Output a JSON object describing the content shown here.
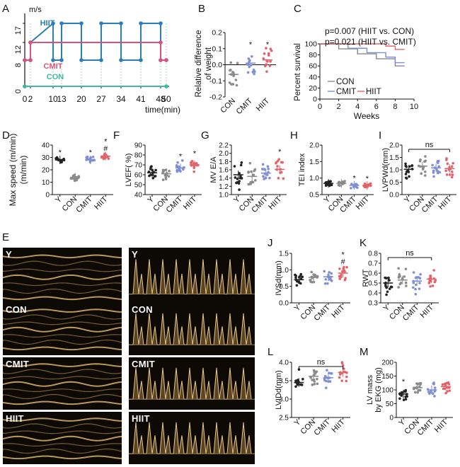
{
  "panels": {
    "A": {
      "letter": "A"
    },
    "B": {
      "letter": "B"
    },
    "C": {
      "letter": "C"
    },
    "D": {
      "letter": "D"
    },
    "F": {
      "letter": "F"
    },
    "G": {
      "letter": "G"
    },
    "H": {
      "letter": "H"
    },
    "I": {
      "letter": "I"
    },
    "E": {
      "letter": "E"
    },
    "J": {
      "letter": "J"
    },
    "K": {
      "letter": "K"
    },
    "L": {
      "letter": "L"
    },
    "M": {
      "letter": "M"
    }
  },
  "colors": {
    "Y": "#222222",
    "CON": "#8a8a8a",
    "CMIT": "#7f8fd3",
    "HIIT": "#e0646a",
    "hiit_line": "#2b7fb8",
    "cmit_line": "#d4547a",
    "con_line": "#3fb8a8"
  },
  "chart_data": [
    {
      "panel": "A",
      "type": "line",
      "ylabel": "m/s",
      "xlabel": "time(min)",
      "xticks": [
        "0",
        "2",
        "10",
        "13",
        "20",
        "27",
        "34",
        "41",
        "48",
        "50"
      ],
      "yticks": [
        "0",
        "8",
        "12",
        "17"
      ],
      "series": [
        {
          "name": "HIIT",
          "x": [
            0,
            2,
            2,
            10,
            10,
            13,
            13,
            20,
            20,
            27,
            27,
            34,
            34,
            41,
            41,
            48,
            48,
            50
          ],
          "y": [
            8,
            8,
            12,
            17,
            8,
            8,
            17,
            17,
            8,
            8,
            17,
            17,
            8,
            8,
            17,
            17,
            8,
            8
          ]
        },
        {
          "name": "CMIT",
          "x": [
            0,
            2,
            2,
            48,
            48,
            50
          ],
          "y": [
            8,
            8,
            12,
            12,
            8,
            8
          ]
        },
        {
          "name": "CON",
          "x": [
            0,
            50
          ],
          "y": [
            0,
            0
          ]
        }
      ]
    },
    {
      "panel": "B",
      "type": "scatter",
      "ylabel": "Relative difference of weight",
      "categories": [
        "CON",
        "CMIT",
        "HIIT"
      ],
      "yticks": [
        "-0.2",
        "-0.1",
        "0.0",
        "0.1",
        "0.2"
      ],
      "ylim": [
        -0.2,
        0.2
      ],
      "means": [
        -0.06,
        0.01,
        0.03
      ],
      "sig": [
        "",
        "*",
        "*"
      ]
    },
    {
      "panel": "C",
      "type": "line",
      "ylabel": "Percent survival",
      "xlabel": "Weeks",
      "xticks": [
        "0",
        "2",
        "4",
        "6",
        "8",
        "10"
      ],
      "yticks": [
        "0",
        "20",
        "40",
        "60",
        "80",
        "100"
      ],
      "annotations": [
        "p=0.007 (HIIT vs. CON)",
        "p=0.021 (HIIT vs. CMIT)"
      ],
      "series": [
        {
          "name": "CON",
          "x": [
            0,
            2,
            2,
            4,
            4,
            6,
            6,
            8,
            8,
            9
          ],
          "y": [
            100,
            100,
            91,
            91,
            82,
            82,
            73,
            73,
            60,
            60
          ]
        },
        {
          "name": "CMIT",
          "x": [
            0,
            3,
            3,
            5,
            5,
            7,
            7,
            8,
            8,
            9
          ],
          "y": [
            100,
            100,
            92,
            92,
            84,
            84,
            76,
            76,
            66,
            66
          ]
        },
        {
          "name": "HIIT",
          "x": [
            0,
            7,
            7,
            8,
            8,
            9
          ],
          "y": [
            100,
            100,
            96,
            96,
            90,
            90
          ]
        }
      ]
    },
    {
      "panel": "D",
      "type": "scatter",
      "ylabel": "Max speed (m/min)",
      "categories": [
        "Y",
        "CON",
        "CMIT",
        "HIIT"
      ],
      "yticks": [
        "0",
        "10",
        "20",
        "30",
        "40"
      ],
      "ylim": [
        0,
        40
      ],
      "means": [
        28,
        14,
        28,
        31
      ],
      "sig": [
        "*",
        "",
        "*",
        "*\n#"
      ]
    },
    {
      "panel": "F",
      "type": "scatter",
      "ylabel": "LVEF( %)",
      "categories": [
        "Y",
        "CON",
        "CMIT",
        "HIIT"
      ],
      "yticks": [
        "40",
        "50",
        "60",
        "70",
        "80",
        "90"
      ],
      "ylim": [
        40,
        90
      ],
      "means": [
        62,
        61,
        67,
        70
      ],
      "sig": [
        "",
        "",
        "*",
        "*"
      ]
    },
    {
      "panel": "G",
      "type": "scatter",
      "ylabel": "MV E/A",
      "categories": [
        "Y",
        "CON",
        "CMIT",
        "HIIT"
      ],
      "yticks": [
        "1.0",
        "1.2",
        "1.4",
        "1.6",
        "1.8",
        "2.0",
        "2.2"
      ],
      "ylim": [
        1.0,
        2.2
      ],
      "means": [
        1.48,
        1.44,
        1.52,
        1.61
      ],
      "sig": [
        "",
        "",
        "",
        "*"
      ]
    },
    {
      "panel": "H",
      "type": "scatter",
      "ylabel": "TEI index",
      "categories": [
        "Y",
        "CON",
        "CMIT",
        "HIIT"
      ],
      "yticks": [
        "0.5",
        "1.0",
        "1.5",
        "2.0"
      ],
      "ylim": [
        0.5,
        2.0
      ],
      "means": [
        0.84,
        0.84,
        0.78,
        0.77
      ],
      "sig": [
        "",
        "",
        "*",
        "*"
      ]
    },
    {
      "panel": "I",
      "type": "scatter",
      "ylabel": "LVPWd(mm)",
      "categories": [
        "Y",
        "CON",
        "CMIT",
        "HIIT"
      ],
      "yticks": [
        "0.0",
        "0.5",
        "1.0",
        "1.5",
        "2.0"
      ],
      "ylim": [
        0,
        2.0
      ],
      "means": [
        1.02,
        1.15,
        1.08,
        1.05
      ],
      "ns": "ns"
    },
    {
      "panel": "J",
      "type": "scatter",
      "ylabel": "IVSd(mm)",
      "categories": [
        "Y",
        "CON",
        "CMIT",
        "HIIT"
      ],
      "yticks": [
        "0.0",
        "0.5",
        "1.0",
        "1.5"
      ],
      "ylim": [
        0,
        1.5
      ],
      "means": [
        0.7,
        0.77,
        0.79,
        0.9
      ],
      "sig": [
        "",
        "",
        "",
        "*\n#"
      ]
    },
    {
      "panel": "K",
      "type": "scatter",
      "ylabel": "RWT",
      "categories": [
        "Y",
        "CON",
        "CMIT",
        "HIIT"
      ],
      "yticks": [
        "0.3",
        "0.4",
        "0.5",
        "0.6",
        "0.7",
        "0.8"
      ],
      "ylim": [
        0.3,
        0.8
      ],
      "means": [
        0.5,
        0.53,
        0.52,
        0.54
      ],
      "ns": "ns"
    },
    {
      "panel": "L",
      "type": "scatter",
      "ylabel": "LVIDd(mm)",
      "categories": [
        "Y",
        "CON",
        "CMIT",
        "HIIT"
      ],
      "yticks": [
        "2.5",
        "3.0",
        "3.5",
        "4.0"
      ],
      "ylim": [
        2.5,
        4.0
      ],
      "means": [
        3.45,
        3.62,
        3.58,
        3.72
      ],
      "ns": "ns"
    },
    {
      "panel": "M",
      "type": "scatter",
      "ylabel": "LV mass\nby EKG (mg)",
      "categories": [
        "Y",
        "CON",
        "CMIT",
        "HIIT"
      ],
      "yticks": [
        "0",
        "50",
        "100",
        "150",
        "200"
      ],
      "ylim": [
        0,
        200
      ],
      "means": [
        85,
        108,
        100,
        112
      ],
      "sig": [
        "*",
        "",
        "",
        ""
      ]
    }
  ],
  "echo": {
    "left": [
      "Y",
      "CON",
      "CMIT",
      "HIIT"
    ],
    "right": [
      "Y",
      "CON",
      "CMIT",
      "HIIT"
    ]
  }
}
